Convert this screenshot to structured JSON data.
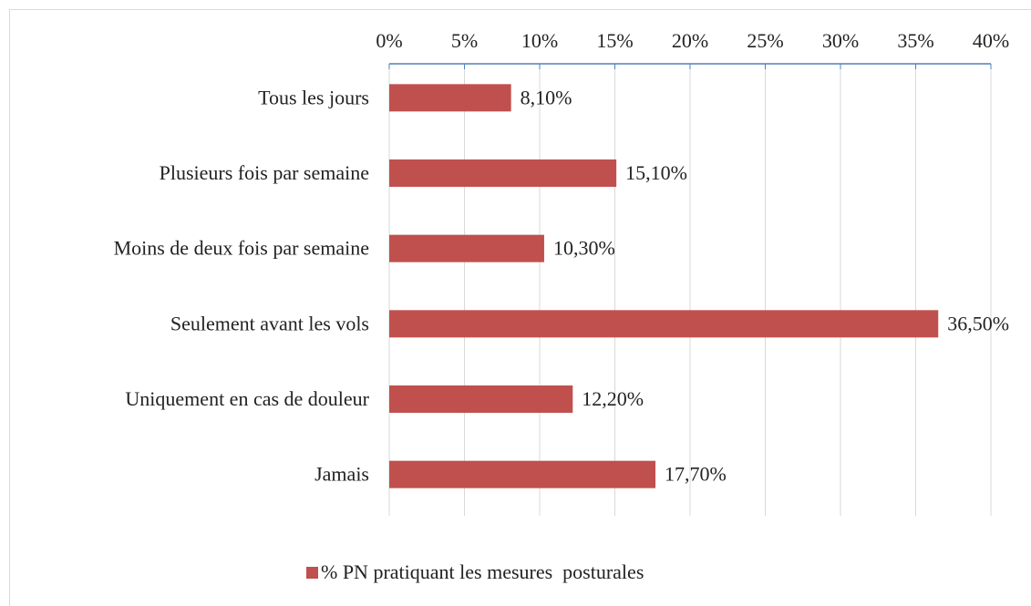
{
  "chart_data": {
    "type": "bar",
    "orientation": "horizontal",
    "categories": [
      "Tous les jours",
      "Plusieurs fois par semaine",
      "Moins de deux fois par semaine",
      "Seulement avant les vols",
      "Uniquement en cas de douleur",
      "Jamais"
    ],
    "series": [
      {
        "name": "% PN pratiquant les mesures  posturales",
        "color": "#c0504d",
        "values": [
          8.1,
          15.1,
          10.3,
          36.5,
          12.2,
          17.7
        ],
        "value_labels": [
          "8,10%",
          "15,10%",
          "10,30%",
          "36,50%",
          "12,20%",
          "17,70%"
        ]
      }
    ],
    "xlim": [
      0,
      40
    ],
    "xticks": [
      {
        "value": 0,
        "label": "0%"
      },
      {
        "value": 5,
        "label": "5%"
      },
      {
        "value": 10,
        "label": "10%"
      },
      {
        "value": 15,
        "label": "15%"
      },
      {
        "value": 20,
        "label": "20%"
      },
      {
        "value": 25,
        "label": "25%"
      },
      {
        "value": 30,
        "label": "30%"
      },
      {
        "value": 35,
        "label": "35%"
      },
      {
        "value": 40,
        "label": "40%"
      }
    ],
    "grid": true,
    "legend": "bottom"
  }
}
